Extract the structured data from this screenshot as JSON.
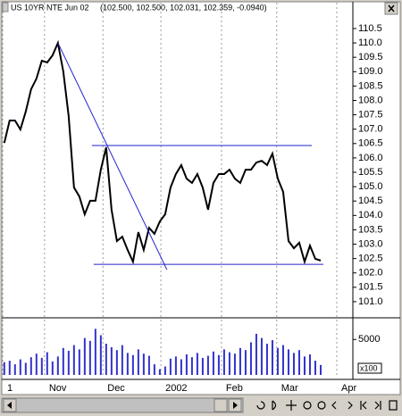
{
  "window": {
    "title": "US 10YR NTE Jun 02",
    "quote": "(102.500, 102.500, 102.031, 102.359, -0.0940)"
  },
  "chart_data": [
    {
      "type": "line",
      "color": "#000000",
      "x": [
        0,
        1,
        2,
        3,
        4,
        5,
        6,
        7,
        8,
        9,
        10,
        11,
        12,
        13,
        14,
        15,
        16,
        17,
        18,
        19,
        20,
        21,
        22,
        23,
        24,
        25,
        26,
        27,
        28,
        29,
        30,
        31,
        32,
        33,
        34,
        35,
        36,
        37,
        38,
        39,
        40,
        41,
        42,
        43,
        44,
        45,
        46,
        47,
        48,
        49,
        50,
        51,
        52,
        53,
        54,
        55,
        56,
        57,
        58,
        59
      ],
      "values": [
        106.52,
        107.3,
        107.3,
        106.99,
        107.61,
        108.39,
        108.76,
        109.38,
        109.32,
        109.57,
        110.0,
        109.01,
        107.46,
        104.97,
        104.66,
        104.04,
        104.51,
        104.51,
        105.59,
        106.37,
        104.2,
        103.11,
        103.26,
        102.8,
        102.39,
        103.42,
        102.8,
        103.57,
        103.36,
        103.79,
        104.04,
        104.97,
        105.44,
        105.75,
        105.28,
        105.13,
        105.44,
        104.97,
        104.2,
        105.13,
        105.44,
        105.44,
        105.59,
        105.28,
        105.13,
        105.59,
        105.59,
        105.84,
        105.9,
        105.75,
        106.15,
        105.28,
        104.82,
        103.11,
        102.86,
        103.05,
        102.39,
        102.95,
        102.49,
        102.43
      ],
      "xlim": [
        -0.3,
        65
      ],
      "xticks": [
        {
          "value": -0.3,
          "label": "1"
        },
        {
          "value": 7.5,
          "label": "Nov"
        },
        {
          "value": 18.4,
          "label": "Dec"
        },
        {
          "value": 29.2,
          "label": "2002"
        },
        {
          "value": 40.5,
          "label": "Feb"
        },
        {
          "value": 50.8,
          "label": "Mar"
        },
        {
          "value": 62,
          "label": "Apr"
        }
      ],
      "ylim": [
        100.47,
        111.4
      ],
      "yticks": [
        110.5,
        {
          "value": 110,
          "label": "110.0"
        },
        109.5,
        {
          "value": 109,
          "label": "109.0"
        },
        108.5,
        {
          "value": 108,
          "label": "108.0"
        },
        107.5,
        {
          "value": 107,
          "label": "107.0"
        },
        106.5,
        {
          "value": 106,
          "label": "106.0"
        },
        105.5,
        {
          "value": 105,
          "label": "105.0"
        },
        104.5,
        {
          "value": 104,
          "label": "104.0"
        },
        103.5,
        {
          "value": 103,
          "label": "103.0"
        },
        102.5,
        {
          "value": 102,
          "label": "102.0"
        },
        101.5,
        {
          "value": 101,
          "label": "101.0"
        }
      ],
      "trendline_color": "#2222cc",
      "trendlines": [
        {
          "x": [
            10,
            30.33
          ],
          "y": [
            110.0,
            102.11
          ]
        },
        {
          "x": [
            16.33,
            57.33
          ],
          "y": [
            106.43,
            106.43
          ]
        },
        {
          "x": [
            16.67,
            59.5
          ],
          "y": [
            102.3,
            102.3
          ]
        }
      ]
    },
    {
      "type": "bar",
      "color": "#3333cc",
      "x": [
        0,
        1,
        2,
        3,
        4,
        5,
        6,
        7,
        8,
        9,
        10,
        11,
        12,
        13,
        14,
        15,
        16,
        17,
        18,
        19,
        20,
        21,
        22,
        23,
        24,
        25,
        26,
        27,
        28,
        29,
        30,
        31,
        32,
        33,
        34,
        35,
        36,
        37,
        38,
        39,
        40,
        41,
        42,
        43,
        44,
        45,
        46,
        47,
        48,
        49,
        50,
        51,
        52,
        53,
        54,
        55,
        56,
        57,
        58,
        59
      ],
      "values": [
        1800,
        2000,
        1500,
        2200,
        1700,
        2500,
        3000,
        2400,
        3200,
        1900,
        2600,
        3800,
        3400,
        4200,
        3600,
        5200,
        4800,
        6500,
        5600,
        4400,
        3900,
        3500,
        4200,
        3100,
        2800,
        3600,
        3000,
        2700,
        1500,
        800,
        1200,
        2300,
        2600,
        2200,
        2900,
        2500,
        3100,
        2400,
        2700,
        3300,
        2800,
        3600,
        3200,
        3000,
        3800,
        3500,
        4600,
        5800,
        5200,
        4400,
        4900,
        3800,
        4200,
        3600,
        3100,
        3500,
        2600,
        2900,
        2000,
        1400
      ],
      "xlim": [
        -0.3,
        65
      ],
      "ylim": [
        0,
        7800
      ],
      "yticks": [
        5000
      ],
      "unit_label": "x100"
    }
  ]
}
